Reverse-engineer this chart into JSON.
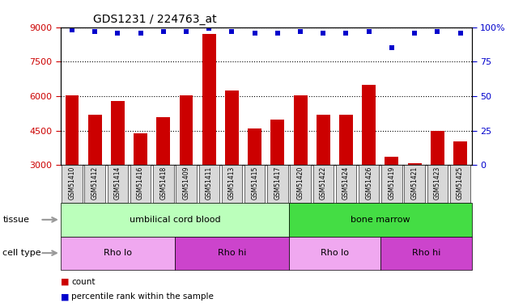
{
  "title": "GDS1231 / 224763_at",
  "samples": [
    "GSM51410",
    "GSM51412",
    "GSM51414",
    "GSM51416",
    "GSM51418",
    "GSM51409",
    "GSM51411",
    "GSM51413",
    "GSM51415",
    "GSM51417",
    "GSM51420",
    "GSM51422",
    "GSM51424",
    "GSM51426",
    "GSM51419",
    "GSM51421",
    "GSM51423",
    "GSM51425"
  ],
  "counts": [
    6050,
    5200,
    5800,
    4400,
    5100,
    6050,
    8700,
    6250,
    4600,
    5000,
    6050,
    5200,
    5200,
    6500,
    3350,
    3100,
    4500,
    4050
  ],
  "percentile_ranks": [
    98,
    97,
    96,
    96,
    97,
    97,
    99,
    97,
    96,
    96,
    97,
    96,
    96,
    97,
    85,
    96,
    97,
    96
  ],
  "ylim_left": [
    3000,
    9000
  ],
  "ylim_right": [
    0,
    100
  ],
  "yticks_left": [
    3000,
    4500,
    6000,
    7500,
    9000
  ],
  "yticks_right": [
    0,
    25,
    50,
    75,
    100
  ],
  "bar_color": "#cc0000",
  "dot_color": "#0000cc",
  "tissue_groups": [
    {
      "label": "umbilical cord blood",
      "start": 0,
      "end": 10,
      "color": "#bbffbb"
    },
    {
      "label": "bone marrow",
      "start": 10,
      "end": 18,
      "color": "#44dd44"
    }
  ],
  "cell_type_groups": [
    {
      "label": "Rho lo",
      "start": 0,
      "end": 5,
      "color": "#f0a8f0"
    },
    {
      "label": "Rho hi",
      "start": 5,
      "end": 10,
      "color": "#cc44cc"
    },
    {
      "label": "Rho lo",
      "start": 10,
      "end": 14,
      "color": "#f0a8f0"
    },
    {
      "label": "Rho hi",
      "start": 14,
      "end": 18,
      "color": "#cc44cc"
    }
  ],
  "legend_count_color": "#cc0000",
  "legend_dot_color": "#0000cc",
  "tick_color_left": "#cc0000",
  "tick_color_right": "#0000cc",
  "xticklabel_bg": "#d8d8d8",
  "arrow_color": "#999999"
}
